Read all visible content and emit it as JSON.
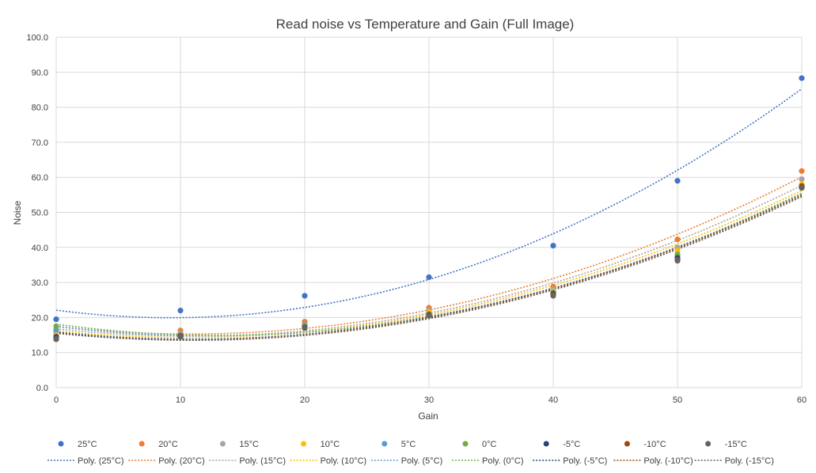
{
  "chart_data": {
    "type": "scatter",
    "title": "Read noise vs Temperature and Gain (Full Image)",
    "xlabel": "Gain",
    "ylabel": "Noise",
    "xlim": [
      0,
      60
    ],
    "ylim": [
      0,
      100
    ],
    "xticks": [
      0,
      10,
      20,
      30,
      40,
      50,
      60
    ],
    "yticks": [
      0,
      10,
      20,
      30,
      40,
      50,
      60,
      70,
      80,
      90,
      100
    ],
    "ytick_labels": [
      "0.0",
      "10.0",
      "20.0",
      "30.0",
      "40.0",
      "50.0",
      "60.0",
      "70.0",
      "80.0",
      "90.0",
      "100.0"
    ],
    "grid": true,
    "legend_position": "bottom",
    "x": [
      0,
      10,
      20,
      30,
      40,
      50,
      60
    ],
    "series": [
      {
        "name": "25°C",
        "color": "#4472C4",
        "values": [
          19.5,
          22.0,
          26.2,
          31.5,
          40.5,
          59.0,
          88.3
        ]
      },
      {
        "name": "20°C",
        "color": "#ED7D31",
        "values": [
          16.0,
          16.3,
          18.8,
          22.8,
          28.8,
          42.3,
          61.8
        ]
      },
      {
        "name": "15°C",
        "color": "#A5A5A5",
        "values": [
          15.5,
          15.5,
          18.0,
          22.0,
          28.0,
          40.0,
          59.5
        ]
      },
      {
        "name": "10°C",
        "color": "#FFC000",
        "values": [
          15.0,
          15.0,
          17.5,
          21.5,
          27.5,
          39.0,
          58.0
        ]
      },
      {
        "name": "5°C",
        "color": "#5B9BD5",
        "values": [
          16.5,
          15.0,
          17.8,
          21.0,
          27.2,
          37.5,
          57.5
        ]
      },
      {
        "name": "0°C",
        "color": "#70AD47",
        "values": [
          17.5,
          14.8,
          17.5,
          21.0,
          27.0,
          38.0,
          57.0
        ]
      },
      {
        "name": "-5°C",
        "color": "#264478",
        "values": [
          14.5,
          14.5,
          17.2,
          20.8,
          26.8,
          37.0,
          57.2
        ]
      },
      {
        "name": "-10°C",
        "color": "#9E480E",
        "values": [
          13.8,
          14.8,
          17.2,
          20.8,
          26.5,
          36.5,
          57.5
        ]
      },
      {
        "name": "-15°C",
        "color": "#636363",
        "values": [
          14.0,
          14.5,
          17.0,
          20.5,
          26.2,
          36.2,
          57.0
        ]
      }
    ],
    "trendlines": [
      {
        "name": "Poly. (25°C)",
        "color": "#4472C4"
      },
      {
        "name": "Poly. (20°C)",
        "color": "#ED7D31"
      },
      {
        "name": "Poly. (15°C)",
        "color": "#A5A5A5"
      },
      {
        "name": "Poly. (10°C)",
        "color": "#FFC000"
      },
      {
        "name": "Poly. (5°C)",
        "color": "#5B9BD5"
      },
      {
        "name": "Poly. (0°C)",
        "color": "#70AD47"
      },
      {
        "name": "Poly. (-5°C)",
        "color": "#264478"
      },
      {
        "name": "Poly. (-10°C)",
        "color": "#9E480E"
      },
      {
        "name": "Poly. (-15°C)",
        "color": "#636363"
      }
    ]
  }
}
